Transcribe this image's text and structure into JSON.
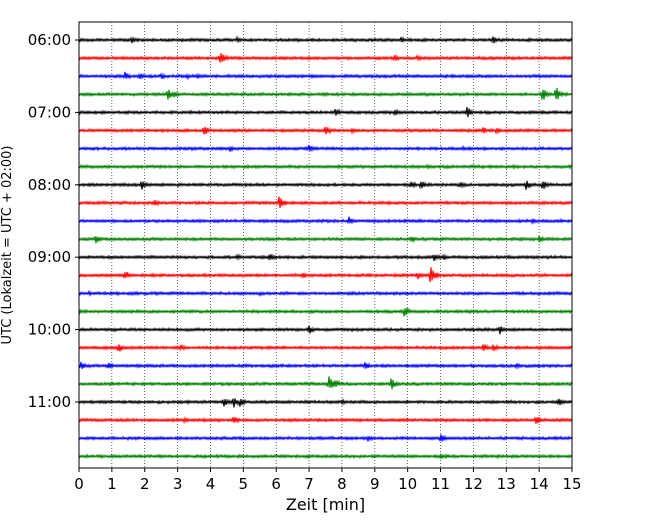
{
  "chart_data": {
    "type": "line",
    "title": "",
    "xlabel": "Zeit  [min]",
    "ylabel": "UTC (Lokalzeit = UTC + 02:00)",
    "xlim": [
      0,
      15
    ],
    "x_ticks": [
      "0",
      "1",
      "2",
      "3",
      "4",
      "5",
      "6",
      "7",
      "8",
      "9",
      "10",
      "11",
      "12",
      "13",
      "14",
      "15"
    ],
    "x_grid": "dotted vertical lines at each minute",
    "y_ticks": [
      "06:00",
      "07:00",
      "08:00",
      "09:00",
      "10:00",
      "11:00"
    ],
    "trace_interval_min": 15,
    "trace_start": "06:00",
    "trace_colors_cycle": [
      "#000000",
      "#ff0000",
      "#0000ff",
      "#008000"
    ],
    "series": [
      {
        "values": [
          [
            1.6,
            0.35
          ],
          [
            4.8,
            0.25
          ],
          [
            9.8,
            0.3
          ],
          [
            12.6,
            0.4
          ]
        ]
      },
      {
        "values": [
          [
            4.3,
            0.75
          ],
          [
            9.6,
            0.35
          ],
          [
            10.3,
            0.3
          ]
        ]
      },
      {
        "values": [
          [
            1.4,
            0.45
          ],
          [
            1.85,
            0.3
          ],
          [
            2.5,
            0.3
          ],
          [
            3.3,
            0.25
          ],
          [
            3.6,
            0.25
          ]
        ]
      },
      {
        "values": [
          [
            2.7,
            0.55
          ],
          [
            2.9,
            0.35
          ],
          [
            14.1,
            0.7
          ],
          [
            14.5,
            0.8
          ]
        ]
      },
      {
        "values": [
          [
            7.8,
            0.45
          ],
          [
            9.6,
            0.4
          ],
          [
            11.8,
            0.55
          ]
        ]
      },
      {
        "values": [
          [
            3.8,
            0.5
          ],
          [
            7.5,
            0.55
          ],
          [
            8.3,
            0.25
          ],
          [
            12.3,
            0.35
          ],
          [
            12.7,
            0.3
          ]
        ]
      },
      {
        "values": [
          [
            4.6,
            0.3
          ],
          [
            7.0,
            0.4
          ],
          [
            11.7,
            0.25
          ]
        ]
      },
      {
        "values": [
          [
            10.6,
            0.2
          ],
          [
            13.2,
            0.2
          ]
        ]
      },
      {
        "values": [
          [
            1.9,
            0.5
          ],
          [
            10.1,
            0.4
          ],
          [
            10.4,
            0.45
          ],
          [
            11.6,
            0.35
          ],
          [
            13.6,
            0.5
          ],
          [
            14.1,
            0.5
          ]
        ]
      },
      {
        "values": [
          [
            2.3,
            0.35
          ],
          [
            6.1,
            0.75
          ],
          [
            11.2,
            0.2
          ],
          [
            14.1,
            0.2
          ]
        ]
      },
      {
        "values": [
          [
            8.2,
            0.45
          ],
          [
            13.8,
            0.3
          ]
        ]
      },
      {
        "values": [
          [
            0.5,
            0.5
          ],
          [
            10.1,
            0.35
          ],
          [
            14.0,
            0.45
          ]
        ]
      },
      {
        "values": [
          [
            4.8,
            0.3
          ],
          [
            5.8,
            0.45
          ],
          [
            10.8,
            0.45
          ],
          [
            11.1,
            0.3
          ]
        ]
      },
      {
        "values": [
          [
            1.4,
            0.5
          ],
          [
            6.8,
            0.3
          ],
          [
            10.3,
            0.4
          ],
          [
            10.7,
            0.95
          ]
        ]
      },
      {
        "values": [
          [
            0.3,
            0.2
          ],
          [
            5.5,
            0.2
          ]
        ]
      },
      {
        "values": [
          [
            0.0,
            0.3
          ],
          [
            9.9,
            0.55
          ]
        ]
      },
      {
        "values": [
          [
            7.0,
            0.45
          ],
          [
            12.8,
            0.45
          ]
        ]
      },
      {
        "values": [
          [
            1.2,
            0.5
          ],
          [
            3.1,
            0.35
          ],
          [
            12.3,
            0.5
          ],
          [
            12.6,
            0.4
          ]
        ]
      },
      {
        "values": [
          [
            0.05,
            0.45
          ],
          [
            0.9,
            0.4
          ],
          [
            8.7,
            0.4
          ],
          [
            13.3,
            0.3
          ]
        ]
      },
      {
        "values": [
          [
            7.6,
            0.8
          ],
          [
            7.8,
            0.45
          ],
          [
            9.5,
            0.6
          ]
        ]
      },
      {
        "values": [
          [
            4.4,
            0.55
          ],
          [
            4.7,
            0.6
          ],
          [
            4.9,
            0.45
          ],
          [
            8.0,
            0.25
          ],
          [
            14.6,
            0.4
          ]
        ]
      },
      {
        "values": [
          [
            3.2,
            0.25
          ],
          [
            4.7,
            0.45
          ],
          [
            13.9,
            0.55
          ]
        ]
      },
      {
        "values": [
          [
            8.8,
            0.35
          ],
          [
            11.0,
            0.45
          ]
        ]
      },
      {
        "values": [
          [
            1.0,
            0.15
          ],
          [
            11.0,
            0.3
          ]
        ]
      }
    ]
  }
}
